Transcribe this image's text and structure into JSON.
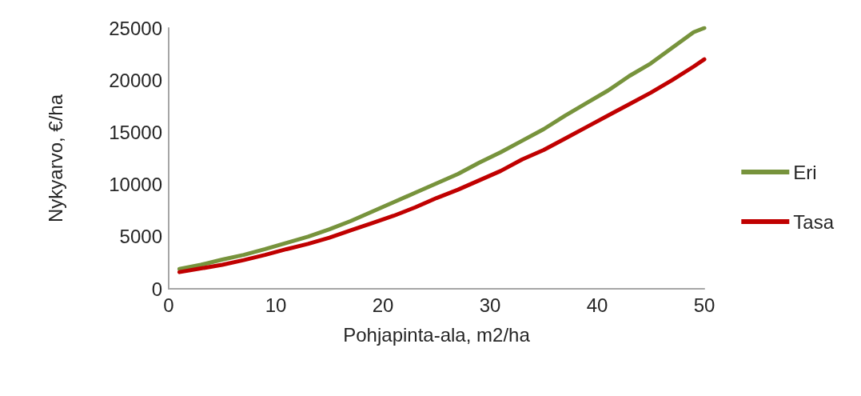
{
  "chart_data": {
    "type": "line",
    "xlabel": "Pohjapinta-ala, m2/ha",
    "ylabel": "Nykyarvo, €/ha",
    "x": [
      1,
      3,
      5,
      7,
      9,
      11,
      13,
      15,
      17,
      19,
      21,
      23,
      25,
      27,
      29,
      31,
      33,
      35,
      37,
      39,
      41,
      43,
      45,
      47,
      49,
      50
    ],
    "series": [
      {
        "name": "Eri",
        "color": "#77933c",
        "values": [
          1900,
          2300,
          2800,
          3250,
          3800,
          4400,
          5000,
          5700,
          6500,
          7400,
          8300,
          9200,
          10100,
          11000,
          12100,
          13100,
          14200,
          15300,
          16600,
          17800,
          19000,
          20400,
          21600,
          23100,
          24600,
          25000
        ]
      },
      {
        "name": "Tasa",
        "color": "#c00000",
        "values": [
          1600,
          1950,
          2300,
          2750,
          3250,
          3800,
          4300,
          4900,
          5600,
          6300,
          7000,
          7800,
          8700,
          9500,
          10400,
          11300,
          12400,
          13300,
          14400,
          15500,
          16600,
          17700,
          18800,
          20000,
          21300,
          22000
        ]
      }
    ],
    "xlim": [
      0,
      50
    ],
    "xticks": [
      0,
      10,
      20,
      30,
      40,
      50
    ],
    "ylim": [
      0,
      25000
    ],
    "yticks": [
      0,
      5000,
      10000,
      15000,
      20000,
      25000
    ],
    "grid": false,
    "legend": "right",
    "marker": "none",
    "line_style": "solid"
  }
}
